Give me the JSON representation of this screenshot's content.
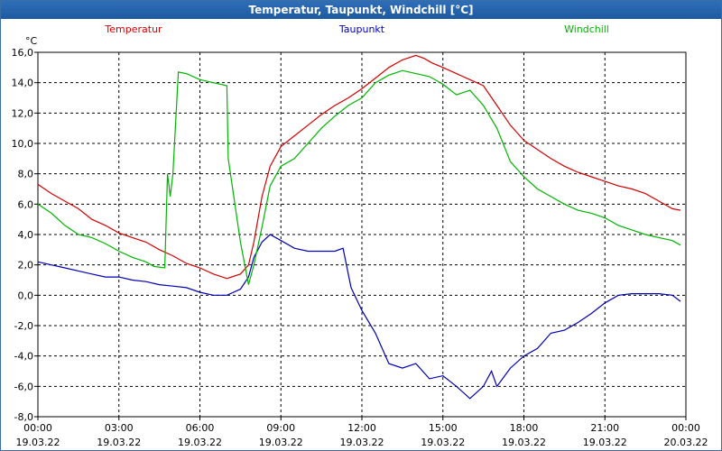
{
  "chart_data": {
    "type": "line",
    "title": "Temperatur, Taupunkt, Windchill [°C]",
    "ylabel": "°C",
    "xlabel": "",
    "ylim": [
      -8,
      16
    ],
    "xlim": [
      0,
      24
    ],
    "grid": true,
    "y_ticks": [
      "16,0",
      "14,0",
      "12,0",
      "10,0",
      "8,0",
      "6,0",
      "4,0",
      "2,0",
      "0,0",
      "-2,0",
      "-4,0",
      "-6,0",
      "-8,0"
    ],
    "x_ticks": [
      {
        "time": "00:00",
        "date": "19.03.22"
      },
      {
        "time": "03:00",
        "date": "19.03.22"
      },
      {
        "time": "06:00",
        "date": "19.03.22"
      },
      {
        "time": "09:00",
        "date": "19.03.22"
      },
      {
        "time": "12:00",
        "date": "19.03.22"
      },
      {
        "time": "15:00",
        "date": "19.03.22"
      },
      {
        "time": "18:00",
        "date": "19.03.22"
      },
      {
        "time": "21:00",
        "date": "19.03.22"
      },
      {
        "time": "00:00",
        "date": "20.03.22"
      }
    ],
    "series": [
      {
        "name": "Temperatur",
        "color": "#d40000",
        "x": [
          0,
          0.5,
          1,
          1.5,
          2,
          2.5,
          3,
          3.5,
          4,
          4.5,
          5,
          5.5,
          6,
          6.5,
          7,
          7.5,
          7.8,
          8,
          8.3,
          8.6,
          9,
          9.5,
          10,
          10.5,
          11,
          11.5,
          12,
          12.5,
          13,
          13.5,
          14,
          14.3,
          14.6,
          15,
          15.5,
          16,
          16.5,
          17,
          17.5,
          18,
          18.5,
          19,
          19.5,
          20,
          20.5,
          21,
          21.5,
          22,
          22.5,
          23,
          23.5,
          23.8
        ],
        "y": [
          7.3,
          6.7,
          6.2,
          5.7,
          5.0,
          4.6,
          4.1,
          3.8,
          3.5,
          3.0,
          2.6,
          2.1,
          1.8,
          1.4,
          1.1,
          1.4,
          2.0,
          3.5,
          6.5,
          8.5,
          9.8,
          10.5,
          11.2,
          11.9,
          12.5,
          13.0,
          13.6,
          14.3,
          15.0,
          15.5,
          15.8,
          15.6,
          15.3,
          15.0,
          14.6,
          14.2,
          13.8,
          12.5,
          11.2,
          10.2,
          9.6,
          9.0,
          8.5,
          8.1,
          7.8,
          7.5,
          7.2,
          7.0,
          6.7,
          6.2,
          5.7,
          5.6
        ]
      },
      {
        "name": "Taupunkt",
        "color": "#0000b4",
        "x": [
          0,
          0.5,
          1,
          1.5,
          2,
          2.5,
          3,
          3.5,
          4,
          4.5,
          5,
          5.5,
          6,
          6.5,
          7,
          7.5,
          7.8,
          8,
          8.3,
          8.6,
          9,
          9.5,
          10,
          10.5,
          11,
          11.3,
          11.6,
          12,
          12.5,
          13,
          13.5,
          14,
          14.5,
          15,
          15.5,
          16,
          16.5,
          16.8,
          17,
          17.5,
          18,
          18.5,
          19,
          19.5,
          20,
          20.5,
          21,
          21.5,
          22,
          22.5,
          23,
          23.5,
          23.8
        ],
        "y": [
          2.2,
          2.0,
          1.8,
          1.6,
          1.4,
          1.2,
          1.2,
          1.0,
          0.9,
          0.7,
          0.6,
          0.5,
          0.2,
          0.0,
          0.0,
          0.4,
          1.2,
          2.5,
          3.5,
          4.0,
          3.6,
          3.1,
          2.9,
          2.9,
          2.9,
          3.1,
          0.5,
          -1.0,
          -2.5,
          -4.5,
          -4.8,
          -4.5,
          -5.5,
          -5.3,
          -6.0,
          -6.8,
          -6.0,
          -5.0,
          -6.0,
          -4.8,
          -4.0,
          -3.5,
          -2.5,
          -2.3,
          -1.8,
          -1.2,
          -0.5,
          0.0,
          0.1,
          0.1,
          0.1,
          0.0,
          -0.4
        ]
      },
      {
        "name": "Windchill",
        "color": "#00b400",
        "x": [
          0,
          0.5,
          1,
          1.5,
          2,
          2.5,
          3,
          3.5,
          4,
          4.3,
          4.7,
          4.8,
          4.9,
          5.0,
          5.2,
          5.5,
          6,
          6.5,
          7,
          7.05,
          7.5,
          7.8,
          8,
          8.3,
          8.6,
          9,
          9.5,
          10,
          10.5,
          11,
          11.5,
          12,
          12.5,
          13,
          13.5,
          14,
          14.5,
          15,
          15.5,
          16,
          16.5,
          17,
          17.5,
          18,
          18.5,
          19,
          19.5,
          20,
          20.5,
          21,
          21.5,
          22,
          22.5,
          23,
          23.5,
          23.8
        ],
        "y": [
          6.0,
          5.4,
          4.6,
          4.0,
          3.8,
          3.4,
          2.9,
          2.5,
          2.2,
          1.9,
          1.8,
          8.0,
          6.5,
          8.0,
          14.7,
          14.6,
          14.2,
          14.0,
          13.8,
          9.0,
          3.5,
          0.7,
          2.0,
          4.5,
          7.2,
          8.5,
          9.0,
          10.0,
          11.0,
          11.8,
          12.5,
          13.0,
          14.0,
          14.5,
          14.8,
          14.6,
          14.4,
          13.9,
          13.2,
          13.5,
          12.5,
          11.0,
          8.8,
          7.8,
          7.0,
          6.5,
          6.0,
          5.6,
          5.4,
          5.1,
          4.6,
          4.3,
          4.0,
          3.8,
          3.6,
          3.3
        ]
      }
    ]
  }
}
